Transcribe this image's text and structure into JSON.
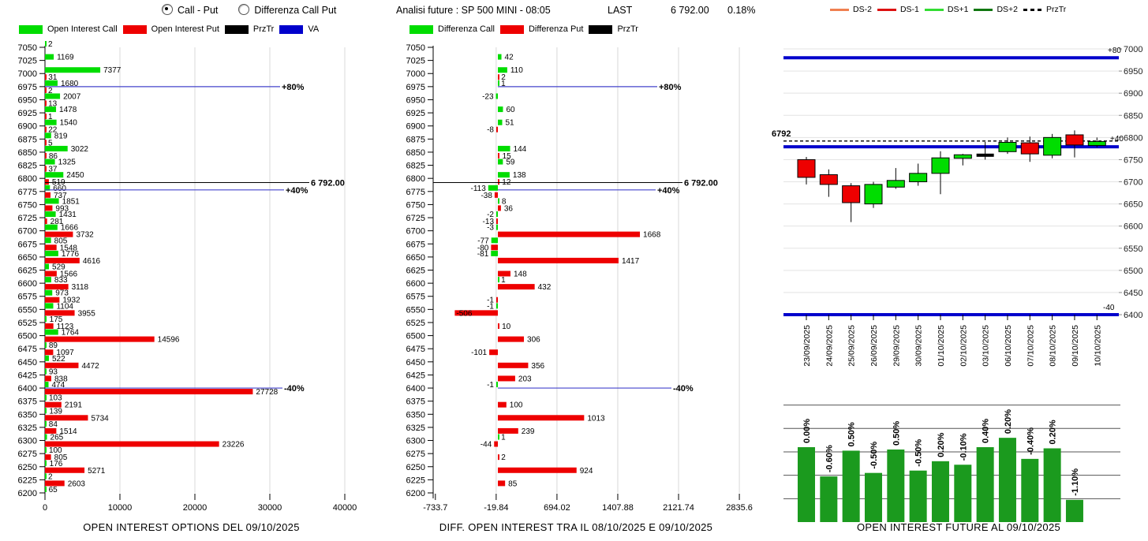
{
  "panel_left": {
    "radio_options": {
      "option1": "Call - Put",
      "option2": "Differenza Call Put",
      "selected": "option1"
    },
    "legend": [
      {
        "label": "Open Interest Call",
        "color": "#00dd00"
      },
      {
        "label": "Open Interest Put",
        "color": "#ee0000"
      },
      {
        "label": "PrzTr",
        "color": "#000000"
      },
      {
        "label": "VA",
        "color": "#0000cc"
      }
    ],
    "title": "OPEN INTEREST OPTIONS DEL 09/10/2025"
  },
  "panel_mid": {
    "header": {
      "title": "Analisi future : SP 500 MINI - 08:05",
      "last_label": "LAST",
      "last_value": "6 792.00",
      "change_pct": "0.18%"
    },
    "legend": [
      {
        "label": "Differenza Call",
        "color": "#00dd00"
      },
      {
        "label": "Differenza Put",
        "color": "#ee0000"
      },
      {
        "label": "PrzTr",
        "color": "#000000"
      }
    ],
    "title": "DIFF. OPEN INTEREST TRA IL 08/10/2025 E 09/10/2025"
  },
  "panel_right": {
    "legend": [
      {
        "label": "DS-2",
        "color": "#f08050",
        "dash": false
      },
      {
        "label": "DS-1",
        "color": "#dd1111",
        "dash": false
      },
      {
        "label": "DS+1",
        "color": "#33dd33",
        "dash": false
      },
      {
        "label": "DS+2",
        "color": "#117711",
        "dash": false
      },
      {
        "label": "PrzTr",
        "color": "#000000",
        "dash": true
      }
    ],
    "future_title": "OPEN INTEREST FUTURE AL 09/10/2025"
  },
  "chart_data": [
    {
      "id": "oi_options",
      "type": "bar",
      "orientation": "horizontal",
      "title": "OPEN INTEREST OPTIONS DEL 09/10/2025",
      "strikes": [
        7050,
        7025,
        7000,
        6975,
        6950,
        6925,
        6900,
        6875,
        6850,
        6825,
        6800,
        6775,
        6750,
        6725,
        6700,
        6675,
        6650,
        6625,
        6600,
        6575,
        6550,
        6525,
        6500,
        6475,
        6450,
        6425,
        6400,
        6375,
        6350,
        6325,
        6300,
        6275,
        6250,
        6225,
        6200
      ],
      "xticks": [
        0,
        10000,
        20000,
        30000,
        40000
      ],
      "xtick_labels": [
        "0",
        "10000",
        "20000",
        "30000",
        "40000"
      ],
      "xlim": [
        0,
        42000
      ],
      "series": [
        {
          "name": "Open Interest Call",
          "color": "#00dd00",
          "values": [
            2,
            1169,
            7377,
            1680,
            2007,
            1478,
            1540,
            819,
            3022,
            1325,
            2450,
            660,
            1851,
            1431,
            1666,
            805,
            1776,
            529,
            833,
            973,
            1104,
            175,
            1764,
            89,
            522,
            93,
            474,
            103,
            139,
            84,
            265,
            100,
            176,
            2,
            65
          ]
        },
        {
          "name": "Open Interest Put",
          "color": "#ee0000",
          "values": [
            null,
            null,
            31,
            2,
            13,
            1,
            22,
            5,
            86,
            37,
            519,
            737,
            993,
            281,
            3732,
            1548,
            4616,
            1566,
            3118,
            1932,
            3955,
            1123,
            14596,
            1097,
            4472,
            838,
            27728,
            2191,
            5734,
            1514,
            23226,
            805,
            5271,
            2603,
            null
          ]
        }
      ],
      "annotations": [
        {
          "label": "+80%",
          "price": 6975,
          "color": "#4444cc"
        },
        {
          "label": "6 792.00",
          "price": 6792,
          "color": "#000000"
        },
        {
          "label": "+40%",
          "price": 6778,
          "color": "#4444cc"
        },
        {
          "label": "-40%",
          "price": 6400,
          "color": "#4444cc"
        }
      ]
    },
    {
      "id": "oi_diff",
      "type": "bar",
      "orientation": "horizontal",
      "title": "DIFF. OPEN INTEREST TRA IL 08/10/2025 E 09/10/2025",
      "strikes": [
        7050,
        7025,
        7000,
        6975,
        6950,
        6925,
        6900,
        6875,
        6850,
        6825,
        6800,
        6775,
        6750,
        6725,
        6700,
        6675,
        6650,
        6625,
        6600,
        6575,
        6550,
        6525,
        6500,
        6475,
        6450,
        6425,
        6400,
        6375,
        6350,
        6325,
        6300,
        6275,
        6250,
        6225,
        6200
      ],
      "xticks": [
        -733.7,
        -19.84,
        694.02,
        1407.88,
        2121.74,
        2835.6
      ],
      "xtick_labels": [
        "-733.7",
        "-19.84",
        "694.02",
        "1407.88",
        "2121.74",
        "2835.6"
      ],
      "xlim": [
        -733.7,
        2835.6
      ],
      "series": [
        {
          "name": "Differenza Call",
          "color": "#00dd00",
          "values": [
            null,
            42,
            110,
            1,
            -23,
            60,
            51,
            null,
            144,
            59,
            138,
            -113,
            8,
            -2,
            -3,
            -77,
            -81,
            null,
            1,
            null,
            -1,
            null,
            null,
            null,
            null,
            null,
            -1,
            null,
            null,
            null,
            1,
            null,
            null,
            null,
            null
          ]
        },
        {
          "name": "Differenza Put",
          "color": "#ee0000",
          "values": [
            null,
            null,
            2,
            null,
            null,
            null,
            -8,
            null,
            15,
            null,
            12,
            -38,
            36,
            -13,
            1668,
            -80,
            1417,
            148,
            432,
            -1,
            -506,
            10,
            306,
            -101,
            356,
            203,
            null,
            100,
            1013,
            239,
            -44,
            2,
            924,
            85,
            null
          ]
        }
      ],
      "annotations": [
        {
          "label": "+80%",
          "price": 6975,
          "color": "#4444cc"
        },
        {
          "label": "6 792.00",
          "price": 6792,
          "color": "#000000"
        },
        {
          "label": "+40%",
          "price": 6778,
          "color": "#4444cc"
        },
        {
          "label": "-40%",
          "price": 6400,
          "color": "#4444cc"
        }
      ]
    },
    {
      "id": "future_candles",
      "type": "candlestick",
      "dates": [
        "23/09/2025",
        "24/09/2025",
        "25/09/2025",
        "26/09/2025",
        "29/09/2025",
        "30/09/2025",
        "01/10/2025",
        "02/10/2025",
        "03/10/2025",
        "06/10/2025",
        "07/10/2025",
        "08/10/2025",
        "09/10/2025",
        "10/10/2025"
      ],
      "ohlc": [
        [
          6750,
          6756,
          6694,
          6710
        ],
        [
          6716,
          6728,
          6666,
          6694
        ],
        [
          6691,
          6697,
          6609,
          6653
        ],
        [
          6650,
          6700,
          6641,
          6694
        ],
        [
          6688,
          6731,
          6684,
          6703
        ],
        [
          6700,
          6741,
          6691,
          6719
        ],
        [
          6719,
          6769,
          6672,
          6754
        ],
        [
          6753,
          6763,
          6737,
          6761
        ],
        [
          6760,
          6790,
          6750,
          6760
        ],
        [
          6768,
          6800,
          6763,
          6789
        ],
        [
          6788,
          6802,
          6745,
          6763
        ],
        [
          6760,
          6808,
          6753,
          6800
        ],
        [
          6806,
          6816,
          6755,
          6783
        ],
        [
          6782,
          6800,
          6778,
          6791
        ]
      ],
      "doji_index": 8,
      "yticks": [
        7000,
        6950,
        6900,
        6850,
        6800,
        6750,
        6700,
        6650,
        6600,
        6550,
        6500,
        6450,
        6400
      ],
      "levels": [
        {
          "label": "+80",
          "value": 6980,
          "color": "#0000cc"
        },
        {
          "label": "+40",
          "value": 6779,
          "color": "#0000cc"
        },
        {
          "label": "-40",
          "value": 6400,
          "color": "#0000cc"
        }
      ],
      "prztr": {
        "label": "6792",
        "value": 6792
      },
      "up_color": "#00dd00",
      "down_color": "#ee0000"
    },
    {
      "id": "future_oi_bars",
      "type": "bar",
      "title": "OPEN INTEREST FUTURE AL 09/10/2025",
      "pct_labels": [
        "0.00%",
        "-0.60%",
        "0.50%",
        "-0.50%",
        "0.50%",
        "-0.50%",
        "0.20%",
        "-0.10%",
        "0.40%",
        "0.20%",
        "-0.40%",
        "0.20%",
        "-1.10%"
      ],
      "bar_heights_rel": [
        0.64,
        0.39,
        0.61,
        0.42,
        0.62,
        0.44,
        0.52,
        0.49,
        0.64,
        0.72,
        0.54,
        0.63,
        0.19
      ],
      "bar_color": "#1b9a1e",
      "grid_levels_rel": [
        0.2,
        0.4,
        0.6,
        0.8,
        1.0
      ]
    }
  ]
}
